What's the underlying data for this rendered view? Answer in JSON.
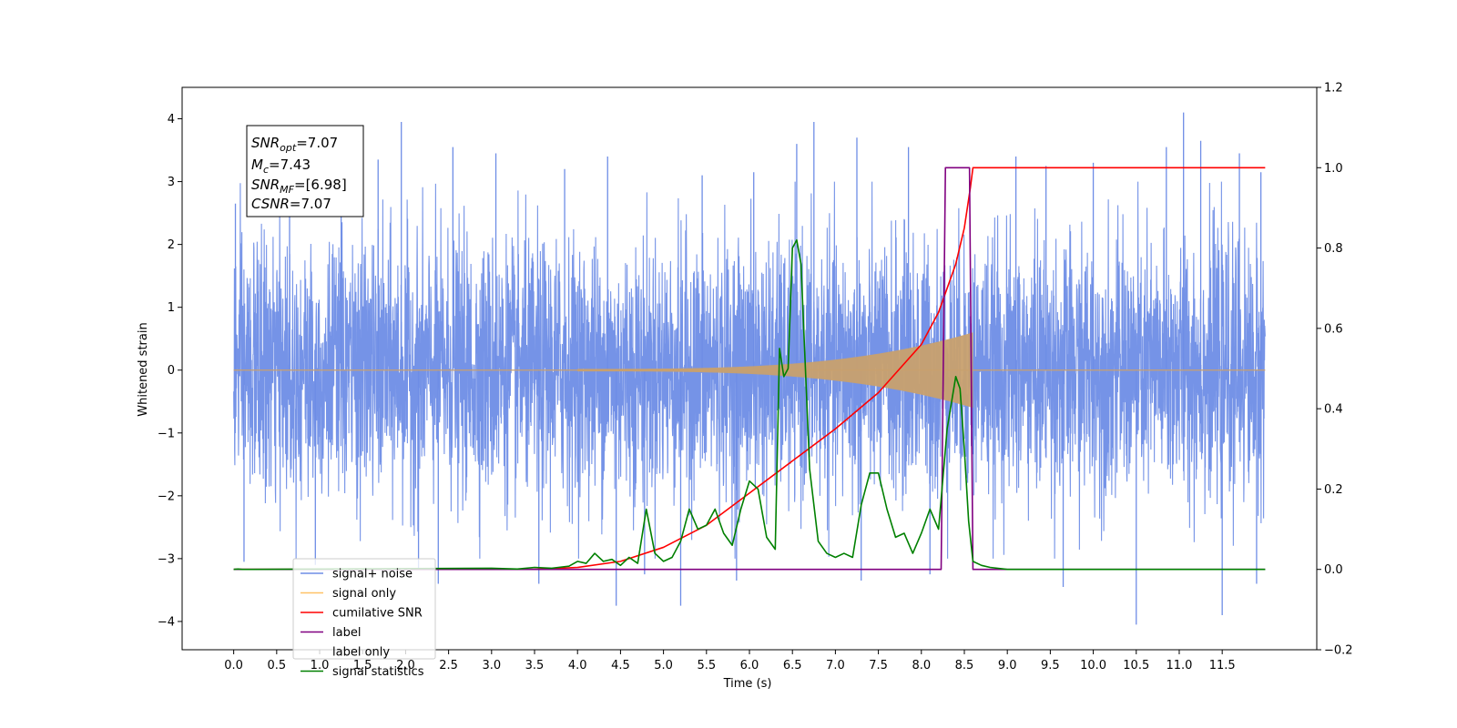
{
  "chart_data": {
    "type": "line",
    "xlabel": "Time (s)",
    "ylabel": "Whitened strain",
    "xlim": [
      -0.6,
      12.6
    ],
    "ylim": [
      -4.45,
      4.5
    ],
    "y2lim": [
      -0.2,
      1.2
    ],
    "x_ticks": [
      0.0,
      0.5,
      1.0,
      1.5,
      2.0,
      2.5,
      3.0,
      3.5,
      4.0,
      4.5,
      5.0,
      5.5,
      6.0,
      6.5,
      7.0,
      7.5,
      8.0,
      8.5,
      9.0,
      9.5,
      10.0,
      10.5,
      11.0,
      11.5
    ],
    "x_tick_labels": [
      "0.0",
      "0.5",
      "1.0",
      "1.5",
      "2.0",
      "2.5",
      "3.0",
      "3.5",
      "4.0",
      "4.5",
      "5.0",
      "5.5",
      "6.0",
      "6.5",
      "7.0",
      "7.5",
      "8.0",
      "8.5",
      "9.0",
      "9.5",
      "10.0",
      "10.5",
      "11.0",
      "11.5"
    ],
    "y_ticks": [
      -4,
      -3,
      -2,
      -1,
      0,
      1,
      2,
      3,
      4
    ],
    "y_tick_labels": [
      "−4",
      "−3",
      "−2",
      "−1",
      "0",
      "1",
      "2",
      "3",
      "4"
    ],
    "y2_ticks": [
      -0.2,
      0.0,
      0.2,
      0.4,
      0.6,
      0.8,
      1.0,
      1.2
    ],
    "y2_tick_labels": [
      "−0.2",
      "0.0",
      "0.2",
      "0.4",
      "0.6",
      "0.8",
      "1.0",
      "1.2"
    ],
    "grid": false,
    "legend_position": "lower-left",
    "series": [
      {
        "name": "signal+ noise",
        "color": "#6e8de6",
        "axis": "left",
        "kind": "noise",
        "t_range": [
          0.0,
          12.0
        ],
        "sigma": 1.0,
        "spikes": [
          [
            0.02,
            2.65
          ],
          [
            0.12,
            -3.05
          ],
          [
            0.65,
            3.3
          ],
          [
            0.95,
            -3.1
          ],
          [
            1.25,
            3.45
          ],
          [
            1.68,
            3.35
          ],
          [
            1.95,
            3.95
          ],
          [
            2.15,
            -3.15
          ],
          [
            2.38,
            -3.4
          ],
          [
            2.55,
            3.55
          ],
          [
            3.05,
            3.45
          ],
          [
            3.55,
            -3.4
          ],
          [
            3.85,
            3.2
          ],
          [
            4.35,
            3.4
          ],
          [
            4.45,
            -3.75
          ],
          [
            4.78,
            -3.25
          ],
          [
            5.2,
            -3.75
          ],
          [
            5.45,
            3.1
          ],
          [
            5.85,
            -3.35
          ],
          [
            6.05,
            3.15
          ],
          [
            6.55,
            3.6
          ],
          [
            6.75,
            3.95
          ],
          [
            7.25,
            3.7
          ],
          [
            7.3,
            -3.35
          ],
          [
            7.85,
            3.55
          ],
          [
            8.1,
            -3.25
          ],
          [
            9.1,
            3.4
          ],
          [
            9.45,
            3.25
          ],
          [
            9.65,
            -3.45
          ],
          [
            10.0,
            3.3
          ],
          [
            10.5,
            -4.05
          ],
          [
            10.85,
            3.55
          ],
          [
            11.05,
            4.1
          ],
          [
            11.25,
            3.65
          ],
          [
            11.5,
            -3.9
          ],
          [
            11.7,
            3.45
          ],
          [
            11.9,
            -3.4
          ],
          [
            11.95,
            3.15
          ]
        ]
      },
      {
        "name": "signal only",
        "color": "#c8a06e",
        "axis": "left",
        "kind": "chirp",
        "start": 4.0,
        "end": 8.6,
        "amp_start": 0.02,
        "amp_end": 0.6
      },
      {
        "name": "cumilative SNR",
        "color": "#ff0000",
        "axis": "right",
        "x": [
          0.0,
          3.5,
          4.0,
          4.5,
          5.0,
          5.5,
          6.0,
          6.5,
          7.0,
          7.5,
          8.0,
          8.2,
          8.4,
          8.5,
          8.57,
          8.6,
          12.0
        ],
        "y": [
          0.0,
          0.0,
          0.005,
          0.02,
          0.055,
          0.11,
          0.19,
          0.27,
          0.35,
          0.44,
          0.56,
          0.64,
          0.76,
          0.85,
          0.95,
          1.0,
          1.0
        ]
      },
      {
        "name": "label",
        "color": "#800080",
        "axis": "right",
        "x": [
          0.0,
          8.23,
          8.28,
          8.56,
          8.6,
          12.0
        ],
        "y": [
          0.0,
          0.0,
          1.0,
          1.0,
          0.0,
          0.0
        ]
      },
      {
        "name": "label only",
        "color": "#c0c0c0",
        "axis": "right",
        "hidden_in_plot": true
      },
      {
        "name": "signal statistics",
        "color": "#008000",
        "axis": "right",
        "x": [
          0.0,
          0.05,
          0.1,
          0.2,
          3.0,
          3.3,
          3.5,
          3.7,
          3.9,
          4.0,
          4.1,
          4.2,
          4.3,
          4.4,
          4.5,
          4.6,
          4.7,
          4.8,
          4.9,
          5.0,
          5.1,
          5.2,
          5.3,
          5.4,
          5.5,
          5.6,
          5.7,
          5.8,
          5.9,
          6.0,
          6.1,
          6.2,
          6.3,
          6.35,
          6.4,
          6.45,
          6.5,
          6.55,
          6.6,
          6.7,
          6.8,
          6.9,
          7.0,
          7.1,
          7.2,
          7.3,
          7.4,
          7.5,
          7.6,
          7.7,
          7.8,
          7.9,
          8.0,
          8.1,
          8.2,
          8.3,
          8.4,
          8.45,
          8.5,
          8.55,
          8.6,
          8.7,
          8.8,
          9.0,
          12.0
        ],
        "y": [
          0.0,
          0.001,
          0.0,
          0.0,
          0.003,
          0.001,
          0.005,
          0.003,
          0.008,
          0.02,
          0.015,
          0.04,
          0.02,
          0.025,
          0.01,
          0.03,
          0.015,
          0.15,
          0.04,
          0.02,
          0.03,
          0.07,
          0.15,
          0.1,
          0.11,
          0.15,
          0.09,
          0.06,
          0.15,
          0.22,
          0.2,
          0.08,
          0.05,
          0.55,
          0.48,
          0.5,
          0.8,
          0.82,
          0.76,
          0.25,
          0.07,
          0.04,
          0.03,
          0.04,
          0.03,
          0.16,
          0.24,
          0.24,
          0.15,
          0.08,
          0.09,
          0.04,
          0.09,
          0.15,
          0.1,
          0.35,
          0.48,
          0.45,
          0.3,
          0.12,
          0.02,
          0.01,
          0.005,
          0.0,
          0.0
        ]
      }
    ]
  },
  "annotation": {
    "lines": [
      {
        "prefix": "SNR",
        "sub": "opt",
        "suffix": "=7.07"
      },
      {
        "prefix": "M",
        "sub": "c",
        "suffix": "=7.43"
      },
      {
        "prefix": "SNR",
        "sub": "MF",
        "suffix": "=[6.98]"
      },
      {
        "prefix": "CSNR",
        "sub": "",
        "suffix": "=7.07"
      }
    ]
  }
}
